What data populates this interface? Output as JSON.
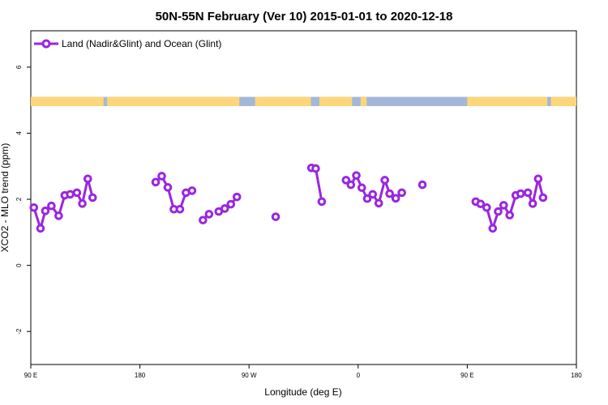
{
  "chart_data": {
    "type": "line",
    "title": "50N-55N February (Ver 10)   2015-01-01 to 2020-12-18",
    "xlabel": "Longitude (deg E)",
    "ylabel": "XCO2 - MLO trend (ppm)",
    "xlim": [
      90,
      540
    ],
    "ylim": [
      -3,
      7.1
    ],
    "x_ticks": [
      {
        "value": 90,
        "label": "90 E"
      },
      {
        "value": 180,
        "label": "180"
      },
      {
        "value": 270,
        "label": "90 W"
      },
      {
        "value": 360,
        "label": "0"
      },
      {
        "value": 450,
        "label": "90 E"
      },
      {
        "value": 540,
        "label": "180"
      }
    ],
    "y_ticks": [
      {
        "value": -2,
        "label": "-2"
      },
      {
        "value": 0,
        "label": "0"
      },
      {
        "value": 2,
        "label": "2"
      },
      {
        "value": 4,
        "label": "4"
      },
      {
        "value": 6,
        "label": "6"
      }
    ],
    "grid": false,
    "legend_position": "top-left",
    "colors": {
      "series": "#9a26e0",
      "land_band": "#fcd679",
      "ocean_band": "#a3b8d8"
    },
    "land_ocean_band": {
      "y_range": [
        4.82,
        5.1
      ],
      "land_segments": [
        [
          90,
          150
        ],
        [
          153,
          262
        ],
        [
          275,
          321
        ],
        [
          328,
          355
        ],
        [
          362,
          367
        ],
        [
          450,
          516
        ],
        [
          519,
          540
        ]
      ]
    },
    "series": [
      {
        "name": "Land (Nadir&Glint) and Ocean (Glint)",
        "segments": [
          [
            [
              92.5,
              1.75
            ],
            [
              98,
              1.12
            ],
            [
              102,
              1.65
            ],
            [
              107,
              1.8
            ],
            [
              113,
              1.5
            ],
            [
              118,
              2.12
            ],
            [
              122.5,
              2.15
            ],
            [
              128,
              2.2
            ],
            [
              132.5,
              1.87
            ],
            [
              137,
              2.62
            ],
            [
              141,
              2.05
            ]
          ],
          [
            [
              193,
              2.52
            ],
            [
              198,
              2.7
            ],
            [
              203,
              2.36
            ],
            [
              208,
              1.7
            ],
            [
              213,
              1.7
            ],
            [
              218,
              2.2
            ],
            [
              223,
              2.26
            ]
          ],
          [
            [
              232,
              1.37
            ],
            [
              237,
              1.55
            ]
          ],
          [
            [
              245,
              1.63
            ],
            [
              250,
              1.72
            ],
            [
              255,
              1.85
            ],
            [
              260,
              2.07
            ]
          ],
          [
            [
              292,
              1.47
            ]
          ],
          [
            [
              321.5,
              2.95
            ],
            [
              325,
              2.93
            ],
            [
              330,
              1.93
            ]
          ],
          [
            [
              350,
              2.58
            ],
            [
              354,
              2.44
            ],
            [
              358.5,
              2.72
            ],
            [
              363,
              2.35
            ],
            [
              367.5,
              2.02
            ],
            [
              372,
              2.15
            ],
            [
              377,
              1.88
            ],
            [
              382,
              2.58
            ],
            [
              386,
              2.17
            ],
            [
              391,
              2.03
            ],
            [
              396,
              2.2
            ]
          ],
          [
            [
              413,
              2.44
            ]
          ],
          [
            [
              457,
              1.93
            ],
            [
              461,
              1.86
            ],
            [
              466,
              1.75
            ],
            [
              471,
              1.12
            ],
            [
              475.5,
              1.63
            ],
            [
              480,
              1.82
            ],
            [
              485,
              1.52
            ],
            [
              490,
              2.12
            ],
            [
              494,
              2.17
            ],
            [
              500,
              2.2
            ],
            [
              504,
              1.87
            ],
            [
              508.5,
              2.62
            ],
            [
              512.5,
              2.05
            ]
          ]
        ]
      }
    ]
  }
}
